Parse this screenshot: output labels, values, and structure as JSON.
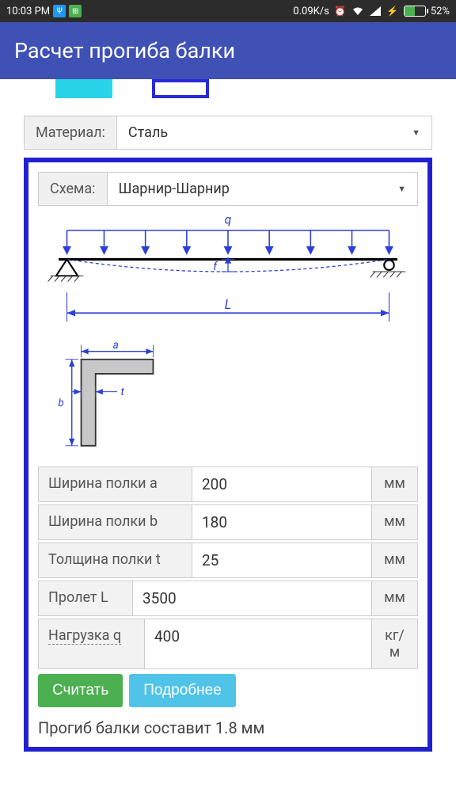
{
  "status": {
    "time": "10:03 PM",
    "speed": "0.09K/s",
    "battery_pct": "52%",
    "battery_fill_pct": 52
  },
  "app_title": "Расчет прогиба балки",
  "material": {
    "label": "Материал:",
    "value": "Сталь"
  },
  "scheme": {
    "label": "Схема:",
    "value": "Шарнир-Шарнир"
  },
  "diagram": {
    "q_label": "q",
    "f_label": "f",
    "L_label": "L",
    "a_label": "a",
    "b_label": "b",
    "t_label": "t",
    "line_color": "#2b3fd8",
    "hatch_color": "#333",
    "section_fill": "#c8c8c8"
  },
  "inputs": [
    {
      "label": "Ширина полки a",
      "value": "200",
      "unit": "мм",
      "label_w": 195
    },
    {
      "label": "Ширина полки b",
      "value": "180",
      "unit": "мм",
      "label_w": 195
    },
    {
      "label": "Толщина полки t",
      "value": "25",
      "unit": "мм",
      "label_w": 195
    },
    {
      "label": "Пролет L",
      "value": "3500",
      "unit": "мм",
      "label_w": 120
    },
    {
      "label": "Нагрузка q",
      "value": "400",
      "unit": "кг/м",
      "label_w": 135,
      "dashed": true
    }
  ],
  "buttons": {
    "calc": "Считать",
    "more": "Подробнее"
  },
  "result": "Прогиб балки составит 1.8 мм"
}
